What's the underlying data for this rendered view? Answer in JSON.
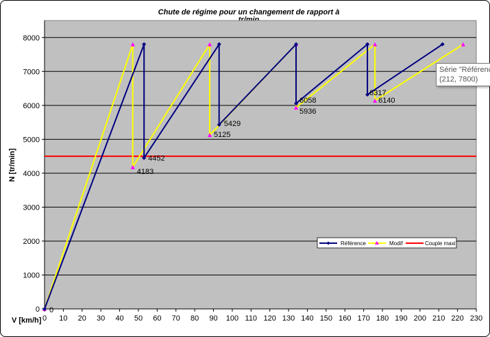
{
  "chart_data": {
    "type": "line",
    "title": "Chute de régime pour un changement de rapport à tr/min",
    "title_line1": "Chute de régime pour un changement de rapport à",
    "title_line2": "tr/min",
    "xlabel": "V [km/h]",
    "ylabel": "N [tr/min]",
    "xlim": [
      0,
      230
    ],
    "ylim": [
      0,
      8500
    ],
    "xticks": [
      0,
      10,
      20,
      30,
      40,
      50,
      60,
      70,
      80,
      90,
      100,
      110,
      120,
      130,
      140,
      150,
      160,
      170,
      180,
      190,
      200,
      210,
      220,
      230
    ],
    "yticks": [
      0,
      1000,
      2000,
      3000,
      4000,
      5000,
      6000,
      7000,
      8000
    ],
    "grid": "horizontal",
    "plot_background": "#c0c0c0",
    "legend_position": "bottom-right",
    "series": [
      {
        "name": "Référence",
        "color": "#000080",
        "marker": "diamond",
        "points": [
          [
            0,
            0
          ],
          [
            53,
            7800
          ],
          [
            53,
            4452
          ],
          [
            93,
            7800
          ],
          [
            93,
            5429
          ],
          [
            134,
            7800
          ],
          [
            134,
            6058
          ],
          [
            172,
            7800
          ],
          [
            172,
            6317
          ],
          [
            212,
            7800
          ]
        ]
      },
      {
        "name": "Modif",
        "color": "#ffff00",
        "marker_color": "#ff00ff",
        "marker": "triangle",
        "points": [
          [
            0,
            0
          ],
          [
            47,
            7800
          ],
          [
            47,
            4183
          ],
          [
            88,
            7800
          ],
          [
            88,
            5125
          ],
          [
            134,
            7800
          ],
          [
            134,
            5936
          ],
          [
            176,
            7800
          ],
          [
            176,
            6140
          ],
          [
            223,
            7800
          ]
        ]
      },
      {
        "name": "Couple maxi",
        "color": "#ff0000",
        "marker": "none",
        "points": [
          [
            0,
            4500
          ],
          [
            230,
            4500
          ]
        ]
      }
    ],
    "data_labels": [
      {
        "x": 0,
        "y": 0,
        "text": "0"
      },
      {
        "x": 47,
        "y": 4183,
        "text": "4183"
      },
      {
        "x": 53,
        "y": 4452,
        "text": "4452"
      },
      {
        "x": 88,
        "y": 5125,
        "text": "5125"
      },
      {
        "x": 93,
        "y": 5429,
        "text": "5429"
      },
      {
        "x": 134,
        "y": 6058,
        "text": "6058"
      },
      {
        "x": 134,
        "y": 5936,
        "text": "5936"
      },
      {
        "x": 172,
        "y": 6317,
        "text": "6317"
      },
      {
        "x": 176,
        "y": 6140,
        "text": "6140"
      }
    ],
    "tooltip": {
      "line1": "Série \"Référence\"",
      "line2": "(212, 7800)"
    }
  }
}
